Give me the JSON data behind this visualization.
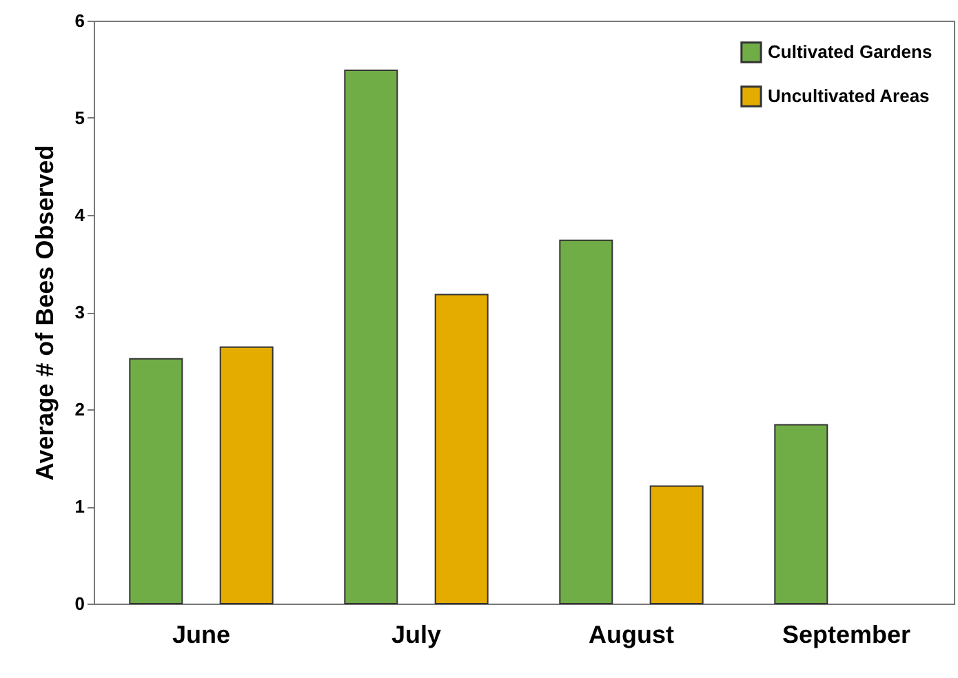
{
  "chart_data": {
    "type": "bar",
    "ylabel": "Average # of Bees Observed",
    "categories": [
      "June",
      "July",
      "August",
      "September"
    ],
    "series": [
      {
        "name": "Cultivated Gardens",
        "color": "#70ad47",
        "values": [
          2.52,
          5.49,
          3.74,
          1.84
        ]
      },
      {
        "name": "Uncultivated Areas",
        "color": "#e5ac00",
        "values": [
          2.64,
          3.18,
          1.21,
          null
        ]
      }
    ],
    "ylim": [
      0,
      6
    ],
    "yticks": [
      0,
      1,
      2,
      3,
      4,
      5,
      6
    ],
    "grid": false,
    "legend": "top right"
  }
}
